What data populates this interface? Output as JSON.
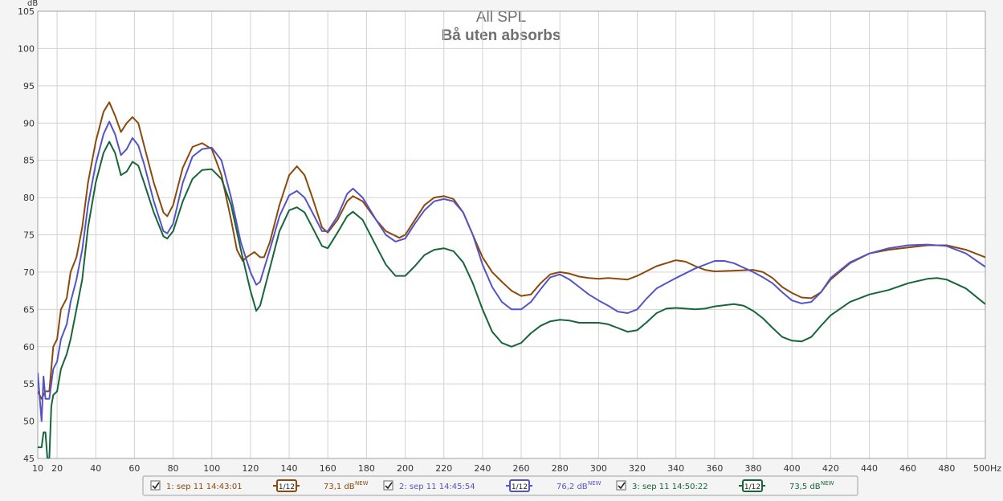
{
  "chart_data": {
    "type": "line",
    "title": "All SPL",
    "subtitle": "Bå uten absorbs",
    "ylabel": "dB",
    "xlim": [
      10,
      500
    ],
    "ylim": [
      45,
      105
    ],
    "grid": true,
    "xticks": [
      10,
      20,
      40,
      60,
      80,
      100,
      120,
      140,
      160,
      180,
      200,
      220,
      240,
      260,
      280,
      300,
      320,
      340,
      360,
      380,
      400,
      420,
      440,
      460,
      480,
      {
        "value": 500,
        "label": "500Hz"
      }
    ],
    "yticks": [
      45,
      50,
      55,
      60,
      65,
      70,
      75,
      80,
      85,
      90,
      95,
      100,
      105
    ],
    "series": [
      {
        "name": "1: sep 11 14:43:01",
        "smoothing": "1/12",
        "level": "73,1 dB",
        "badge": "NEW",
        "color": "#8b4a0c",
        "x": [
          10,
          12,
          14,
          16,
          18,
          20,
          22,
          25,
          27,
          30,
          33,
          36,
          40,
          44,
          47,
          50,
          53,
          56,
          59,
          62,
          65,
          70,
          75,
          77,
          80,
          85,
          90,
          95,
          100,
          105,
          110,
          113,
          116,
          118,
          122,
          125,
          127,
          130,
          135,
          140,
          144,
          148,
          152,
          157,
          160,
          165,
          170,
          173,
          178,
          185,
          190,
          197,
          200,
          205,
          210,
          215,
          220,
          225,
          230,
          235,
          240,
          245,
          250,
          255,
          260,
          265,
          270,
          275,
          280,
          285,
          290,
          295,
          300,
          305,
          310,
          315,
          320,
          330,
          340,
          345,
          350,
          355,
          360,
          370,
          380,
          385,
          390,
          395,
          400,
          405,
          410,
          415,
          420,
          430,
          440,
          450,
          460,
          470,
          480,
          490,
          500
        ],
        "values": [
          54,
          53,
          54,
          54,
          60,
          61,
          65,
          66.5,
          70,
          72,
          76,
          82,
          87.5,
          91.5,
          92.8,
          91,
          88.8,
          90,
          90.8,
          90,
          87,
          82,
          78,
          77.5,
          79,
          84,
          86.8,
          87.3,
          86.5,
          83,
          77,
          73,
          71.5,
          72,
          72.7,
          72,
          72,
          74,
          79,
          83,
          84.2,
          83,
          80,
          76,
          75.3,
          77,
          79.5,
          80.2,
          79.5,
          77,
          75.5,
          74.6,
          75,
          77,
          79,
          80,
          80.2,
          79.8,
          78,
          75,
          72,
          70,
          68.7,
          67.5,
          66.8,
          67,
          68.5,
          69.7,
          70,
          69.8,
          69.4,
          69.2,
          69.1,
          69.2,
          69.1,
          69,
          69.5,
          70.8,
          71.6,
          71.4,
          70.8,
          70.3,
          70.1,
          70.2,
          70.3,
          70,
          69.2,
          68,
          67.2,
          66.6,
          66.5,
          67.3,
          69,
          71.2,
          72.5,
          73,
          73.3,
          73.6,
          73.6,
          73,
          72
        ]
      },
      {
        "name": "2: sep 11 14:45:54",
        "smoothing": "1/12",
        "level": "76,2 dB",
        "badge": "NEW",
        "color": "#5454c6",
        "x": [
          10,
          12,
          13,
          14,
          16,
          18,
          20,
          22,
          25,
          27,
          30,
          33,
          36,
          40,
          44,
          47,
          50,
          53,
          56,
          59,
          62,
          65,
          70,
          75,
          77,
          80,
          85,
          90,
          95,
          100,
          105,
          110,
          115,
          120,
          123,
          125,
          130,
          135,
          140,
          144,
          148,
          152,
          157,
          160,
          165,
          170,
          173,
          178,
          185,
          190,
          195,
          200,
          205,
          210,
          215,
          220,
          225,
          230,
          235,
          240,
          245,
          250,
          255,
          260,
          265,
          270,
          275,
          280,
          285,
          290,
          295,
          300,
          305,
          310,
          315,
          320,
          325,
          330,
          340,
          350,
          360,
          365,
          370,
          380,
          385,
          390,
          395,
          400,
          405,
          410,
          415,
          420,
          430,
          440,
          450,
          460,
          470,
          480,
          490,
          500
        ],
        "values": [
          56.5,
          50,
          56,
          53,
          53,
          57,
          58,
          61,
          63,
          66,
          69,
          73,
          79,
          84.5,
          88.5,
          90.2,
          88.5,
          85.7,
          86.5,
          88,
          87,
          84.5,
          79.5,
          75.5,
          75.2,
          76.5,
          82,
          85.5,
          86.5,
          86.7,
          85,
          80,
          74,
          70,
          68.3,
          68.7,
          73,
          77.5,
          80.3,
          80.9,
          80,
          78,
          75.5,
          75.5,
          77.5,
          80.5,
          81.2,
          80,
          77,
          75,
          74.1,
          74.5,
          76.5,
          78.3,
          79.5,
          79.8,
          79.5,
          78,
          75,
          71,
          68,
          66,
          65,
          65,
          66,
          67.7,
          69.3,
          69.7,
          69,
          68,
          67,
          66.2,
          65.5,
          64.7,
          64.5,
          65,
          66.5,
          67.8,
          69.2,
          70.5,
          71.5,
          71.5,
          71.2,
          70,
          69.3,
          68.5,
          67.3,
          66.2,
          65.8,
          66,
          67.3,
          69.2,
          71.3,
          72.5,
          73.2,
          73.6,
          73.7,
          73.5,
          72.5,
          70.7
        ]
      },
      {
        "name": "3: sep 11 14:50:22",
        "smoothing": "1/12",
        "level": "73,5 dB",
        "badge": "NEW",
        "color": "#17663a",
        "x": [
          10,
          12,
          13,
          14,
          15,
          16,
          17,
          18,
          20,
          22,
          25,
          27,
          30,
          33,
          36,
          40,
          44,
          47,
          50,
          53,
          56,
          59,
          62,
          65,
          70,
          75,
          77,
          80,
          85,
          90,
          95,
          100,
          105,
          110,
          115,
          120,
          123,
          125,
          130,
          135,
          140,
          144,
          148,
          152,
          157,
          160,
          165,
          170,
          173,
          178,
          185,
          190,
          195,
          200,
          205,
          210,
          215,
          220,
          225,
          230,
          235,
          240,
          245,
          250,
          255,
          260,
          265,
          270,
          275,
          280,
          285,
          290,
          300,
          305,
          310,
          315,
          320,
          325,
          330,
          335,
          340,
          350,
          355,
          360,
          370,
          375,
          380,
          385,
          390,
          395,
          400,
          405,
          410,
          415,
          420,
          430,
          440,
          450,
          460,
          470,
          475,
          480,
          490,
          500
        ],
        "values": [
          46.5,
          46.5,
          48.5,
          48.5,
          45,
          45,
          52,
          53.5,
          54,
          57,
          59,
          61,
          65,
          69,
          76,
          82,
          86,
          87.5,
          86,
          83,
          83.5,
          84.8,
          84.3,
          82,
          78,
          74.8,
          74.5,
          75.5,
          79.5,
          82.5,
          83.7,
          83.8,
          82.5,
          79,
          73,
          67.5,
          64.8,
          65.5,
          70.5,
          75.5,
          78.3,
          78.7,
          78,
          76,
          73.5,
          73.2,
          75.3,
          77.5,
          78.1,
          77,
          73.5,
          71,
          69.5,
          69.5,
          70.8,
          72.3,
          73,
          73.2,
          72.8,
          71.3,
          68.5,
          65,
          62,
          60.5,
          60,
          60.5,
          61.8,
          62.8,
          63.4,
          63.6,
          63.5,
          63.2,
          63.2,
          63,
          62.5,
          62,
          62.2,
          63.3,
          64.5,
          65.1,
          65.2,
          65,
          65.1,
          65.4,
          65.7,
          65.5,
          64.8,
          63.8,
          62.5,
          61.3,
          60.8,
          60.7,
          61.3,
          62.8,
          64.2,
          66,
          67,
          67.6,
          68.5,
          69.1,
          69.2,
          69,
          67.8,
          65.7
        ]
      }
    ]
  }
}
